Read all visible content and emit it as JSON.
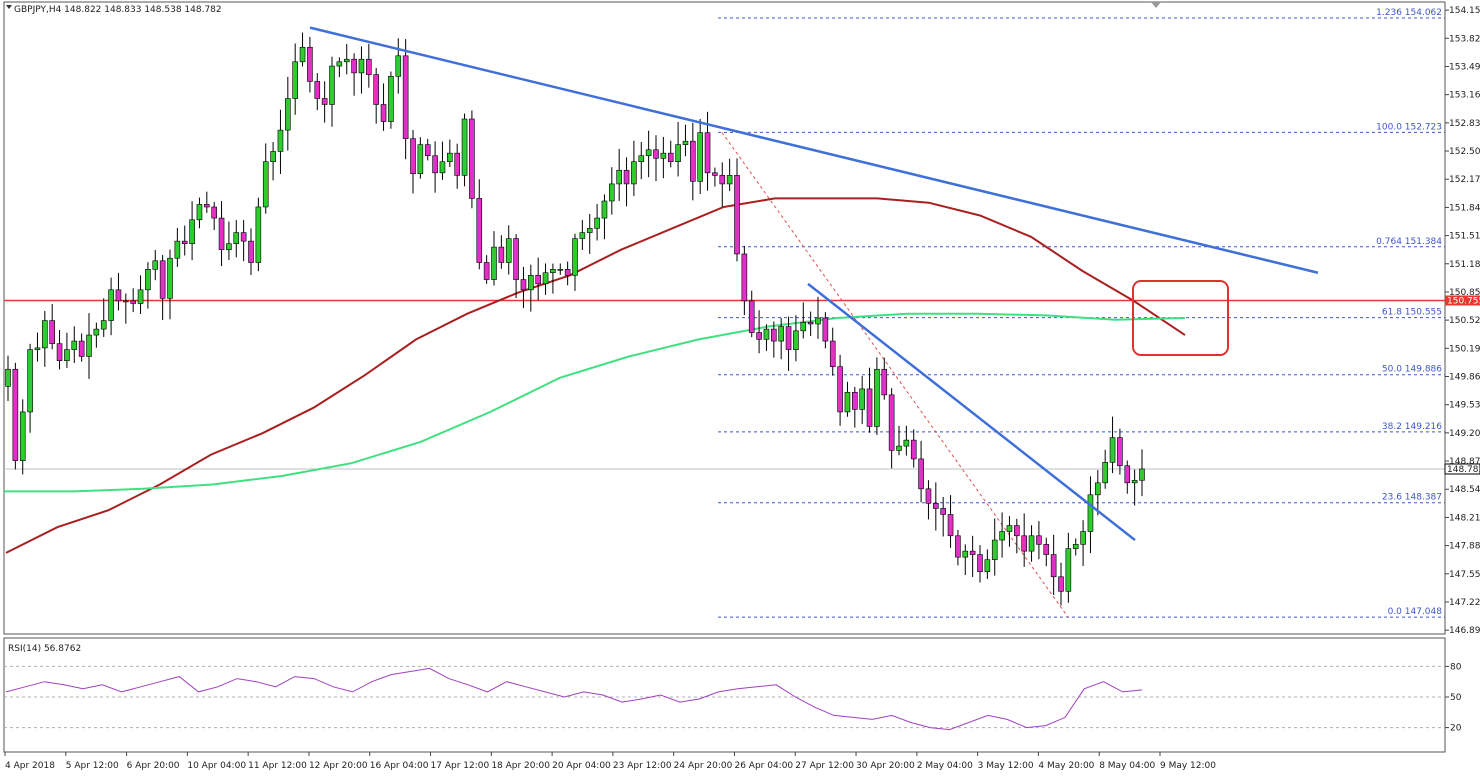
{
  "header": {
    "symbol_info": "GBPJPY,H4  148.822 148.833 148.538 148.782",
    "rsi_label": "RSI(14) 56.8762"
  },
  "chart_data": {
    "type": "candlestick",
    "symbol": "GBPJPY",
    "timeframe": "H4",
    "ohlc": {
      "open": 148.822,
      "high": 148.833,
      "low": 148.538,
      "close": 148.782
    },
    "current_price_label": "148.782",
    "resistance_level_label": "150.755",
    "ylim": [
      146.85,
      154.25
    ],
    "y_ticks": [
      "154.155",
      "153.825",
      "153.495",
      "153.165",
      "152.835",
      "152.505",
      "152.175",
      "151.845",
      "151.515",
      "151.185",
      "150.855",
      "150.525",
      "150.195",
      "149.865",
      "149.535",
      "149.205",
      "148.875",
      "148.545",
      "148.215",
      "147.885",
      "147.555",
      "147.225",
      "146.895"
    ],
    "x_ticks": [
      "4 Apr 2018",
      "5 Apr 12:00",
      "6 Apr 20:00",
      "10 Apr 04:00",
      "11 Apr 12:00",
      "12 Apr 20:00",
      "16 Apr 04:00",
      "17 Apr 12:00",
      "18 Apr 20:00",
      "20 Apr 04:00",
      "23 Apr 12:00",
      "24 Apr 20:00",
      "26 Apr 04:00",
      "27 Apr 12:00",
      "30 Apr 20:00",
      "2 May 04:00",
      "3 May 12:00",
      "4 May 20:00",
      "8 May 04:00",
      "9 May 12:00"
    ],
    "fibonacci": [
      {
        "label": "1.236 154.062",
        "price": 154.062
      },
      {
        "label": "100.0 152.723",
        "price": 152.723
      },
      {
        "label": "0.764 151.384",
        "price": 151.384
      },
      {
        "label": "61.8 150.555",
        "price": 150.555
      },
      {
        "label": "50.0 149.886",
        "price": 149.886
      },
      {
        "label": "38.2 149.216",
        "price": 149.216
      },
      {
        "label": "23.6 148.387",
        "price": 148.387
      },
      {
        "label": "0.0 147.048",
        "price": 147.048
      }
    ],
    "closes": [
      149.95,
      148.88,
      149.45,
      150.18,
      150.2,
      150.52,
      150.25,
      150.05,
      150.18,
      150.28,
      150.1,
      150.35,
      150.42,
      150.52,
      150.88,
      150.75,
      150.75,
      150.72,
      150.88,
      151.12,
      151.22,
      150.78,
      151.25,
      151.45,
      151.42,
      151.7,
      151.88,
      151.85,
      151.72,
      151.35,
      151.42,
      151.55,
      151.45,
      151.2,
      151.85,
      152.38,
      152.5,
      152.75,
      153.12,
      153.55,
      153.72,
      153.32,
      153.12,
      153.05,
      153.5,
      153.55,
      153.58,
      153.42,
      153.58,
      153.4,
      153.05,
      152.85,
      153.38,
      153.62,
      152.65,
      152.24,
      152.58,
      152.45,
      152.25,
      152.38,
      152.48,
      152.22,
      152.88,
      151.95,
      151.2,
      151.0,
      151.38,
      151.2,
      151.48,
      151.0,
      150.88,
      151.05,
      150.95,
      151.08,
      151.12,
      151.12,
      151.05,
      151.48,
      151.55,
      151.6,
      151.72,
      151.92,
      152.12,
      152.28,
      152.12,
      152.38,
      152.45,
      152.52,
      152.42,
      152.48,
      152.38,
      152.58,
      152.62,
      152.15,
      152.72,
      152.25,
      152.22,
      152.12,
      152.22,
      151.3,
      150.75,
      150.38,
      150.3,
      150.42,
      150.28,
      150.45,
      150.18,
      150.4,
      150.5,
      150.48,
      150.55,
      150.28,
      149.98,
      149.45,
      149.68,
      149.48,
      149.72,
      149.28,
      149.95,
      149.65,
      149.0,
      149.05,
      149.12,
      148.9,
      148.55,
      148.38,
      148.32,
      148.25,
      148.0,
      147.75,
      147.82,
      147.78,
      147.58,
      147.72,
      147.95,
      148.05,
      148.12,
      148.0,
      147.82,
      148.0,
      147.9,
      147.78,
      147.52,
      147.35,
      147.85,
      147.9,
      148.05,
      148.48,
      148.62,
      148.86,
      149.15,
      148.82,
      148.62,
      148.65,
      148.782
    ],
    "ma_red": [
      147.8,
      148.1,
      148.3,
      148.6,
      148.95,
      149.2,
      149.5,
      149.88,
      150.3,
      150.6,
      150.85,
      151.05,
      151.35,
      151.6,
      151.85,
      151.95,
      151.95,
      151.95,
      151.9,
      151.75,
      151.5,
      151.1,
      150.75,
      150.35
    ],
    "ma_green": [
      148.52,
      148.52,
      148.55,
      148.6,
      148.7,
      148.85,
      149.1,
      149.45,
      149.85,
      150.1,
      150.3,
      150.45,
      150.55,
      150.6,
      150.6,
      150.58,
      150.53,
      150.55
    ],
    "rsi": {
      "name": "RSI(14)",
      "value": 56.8762,
      "levels": [
        80,
        50,
        20
      ],
      "ylim": [
        0,
        100
      ],
      "values": [
        55,
        60,
        65,
        62,
        58,
        62,
        55,
        60,
        65,
        70,
        55,
        60,
        68,
        65,
        60,
        70,
        68,
        60,
        55,
        65,
        72,
        75,
        78,
        68,
        62,
        55,
        65,
        60,
        55,
        50,
        55,
        52,
        45,
        48,
        52,
        45,
        48,
        55,
        58,
        60,
        62,
        50,
        40,
        32,
        30,
        28,
        32,
        25,
        20,
        18,
        25,
        32,
        28,
        20,
        22,
        30,
        58,
        65,
        55,
        57
      ]
    },
    "annotations": [
      {
        "type": "trendline",
        "color": "#3f6fd9"
      },
      {
        "type": "trendline",
        "color": "#3f6fd9"
      },
      {
        "type": "fib-dashed",
        "color": "#e05050"
      },
      {
        "type": "highlight-box",
        "color": "#e03030"
      }
    ]
  }
}
